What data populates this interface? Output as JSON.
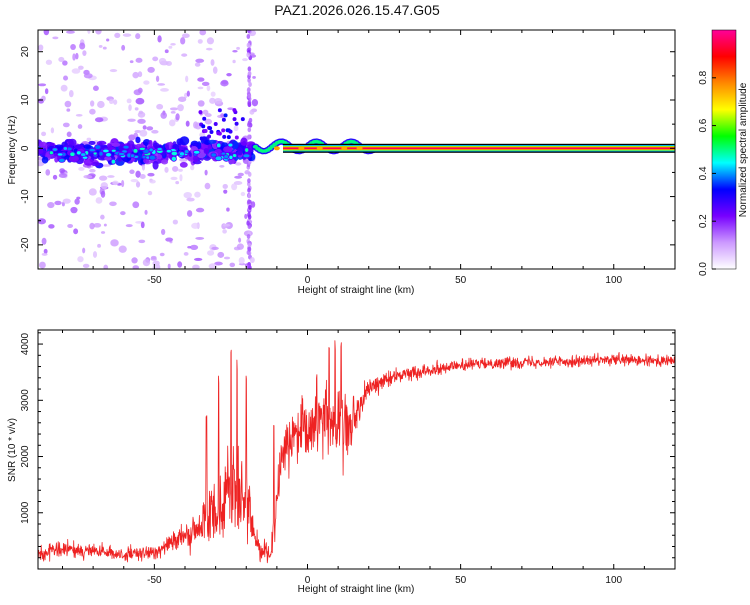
{
  "title": "PAZ1.2026.026.15.47.G05",
  "chart_data": [
    {
      "type": "heatmap",
      "name": "spectrogram",
      "xlabel": "Height of straight line (km)",
      "ylabel": "Frequency (Hz)",
      "xlim": [
        -88,
        120
      ],
      "ylim": [
        -25,
        24.5
      ],
      "x_ticks": [
        -50,
        0,
        50,
        100
      ],
      "y_ticks": [
        -20,
        -10,
        0,
        10,
        20
      ],
      "colorbar": {
        "label": "Normalized spectral amplitude",
        "range": [
          0,
          1
        ],
        "ticks": [
          0.0,
          0.2,
          0.4,
          0.6,
          0.8
        ],
        "colormap": [
          "#ffffff",
          "#cc99ff",
          "#7700ff",
          "#0000ff",
          "#00ffff",
          "#00ff00",
          "#ffff00",
          "#ff8800",
          "#ff0000",
          "#ff0099"
        ]
      },
      "annotations": [
        {
          "text": "dense signal band near 0 Hz",
          "x_range": [
            -88,
            -18
          ],
          "freq_range": [
            -6,
            5
          ]
        },
        {
          "text": "narrow tone line at 0 Hz",
          "x_range": [
            -18,
            120
          ],
          "freq": 0
        }
      ],
      "interference_line_x": -19
    },
    {
      "type": "line",
      "name": "snr",
      "xlabel": "Height of straight line (km)",
      "ylabel": "SNR (10 * v/v)",
      "xlim": [
        -88,
        120
      ],
      "ylim": [
        0,
        4250
      ],
      "x_ticks": [
        -50,
        0,
        50,
        100
      ],
      "y_ticks": [
        1000,
        2000,
        3000,
        4000
      ],
      "series": [
        {
          "name": "SNR",
          "color": "#ee2222",
          "x": [
            -88,
            -80,
            -70,
            -60,
            -50,
            -45,
            -40,
            -35,
            -30,
            -25,
            -20,
            -16,
            -12,
            -10,
            -8,
            -5,
            0,
            3,
            6,
            10,
            14,
            18,
            20,
            25,
            30,
            40,
            50,
            60,
            70,
            80,
            90,
            100,
            110,
            120
          ],
          "values": [
            250,
            350,
            320,
            250,
            280,
            500,
            550,
            700,
            1100,
            1500,
            1100,
            400,
            250,
            1300,
            2100,
            2300,
            2400,
            2600,
            2800,
            2400,
            2500,
            3000,
            3200,
            3350,
            3450,
            3550,
            3620,
            3660,
            3680,
            3690,
            3700,
            3720,
            3700,
            3700
          ],
          "noise": [
            150,
            150,
            140,
            120,
            150,
            200,
            250,
            400,
            700,
            900,
            700,
            250,
            150,
            500,
            400,
            500,
            700,
            800,
            800,
            700,
            500,
            300,
            200,
            150,
            130,
            120,
            110,
            110,
            110,
            110,
            110,
            110,
            110,
            110
          ],
          "spikes": [
            [
              -33,
              2800
            ],
            [
              -29,
              3500
            ],
            [
              -25,
              4000
            ],
            [
              -23,
              3750
            ],
            [
              -20,
              3650
            ],
            [
              -11,
              2600
            ],
            [
              3,
              3600
            ],
            [
              7,
              4250
            ],
            [
              9,
              4200
            ],
            [
              11,
              4250
            ],
            [
              15,
              3300
            ],
            [
              17,
              2800
            ]
          ]
        }
      ]
    }
  ]
}
